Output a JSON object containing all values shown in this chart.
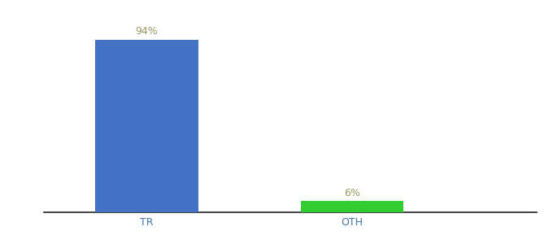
{
  "categories": [
    "TR",
    "OTH"
  ],
  "values": [
    94,
    6
  ],
  "bar_colors": [
    "#4472c4",
    "#33cc33"
  ],
  "label_color": "#999966",
  "background_color": "#ffffff",
  "ylim": [
    0,
    105
  ],
  "bar_width": 0.5,
  "xlabel_fontsize": 9,
  "label_fontsize": 9,
  "tick_color": "#4477aa"
}
